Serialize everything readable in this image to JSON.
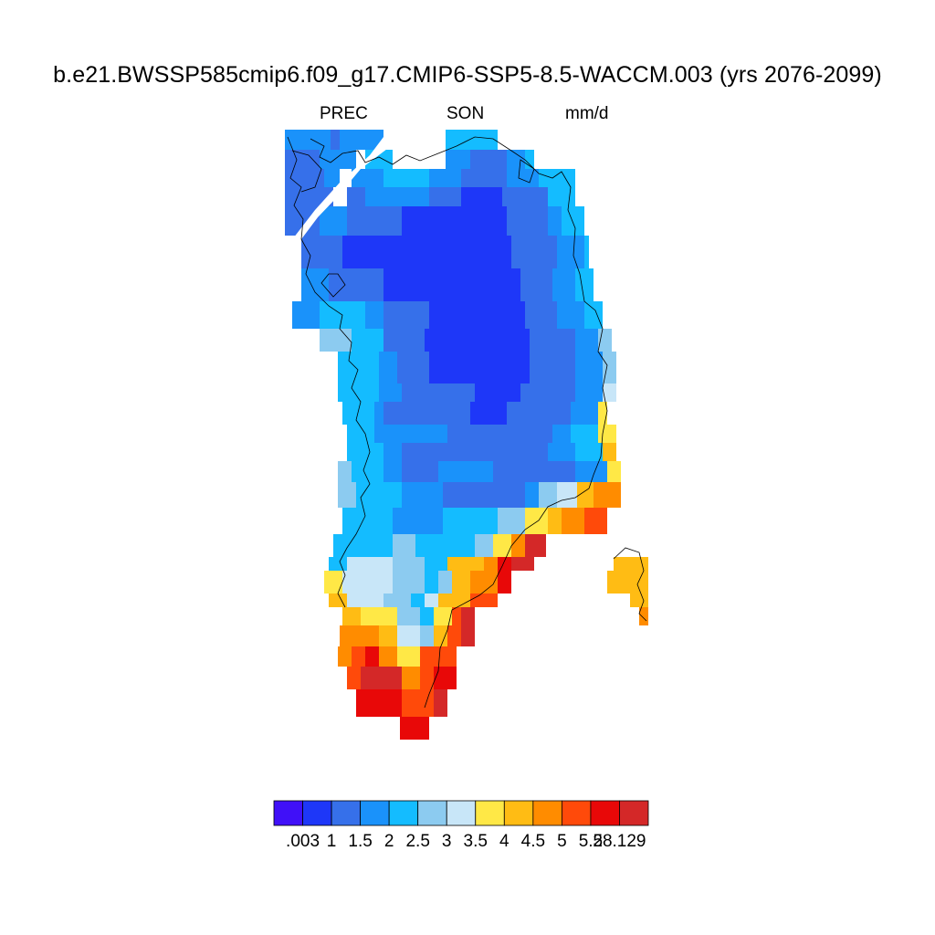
{
  "title": "b.e21.BWSSP585cmip6.f09_g17.CMIP6-SSP5-8.5-WACCM.003 (yrs 2076-2099)",
  "subtitle": {
    "variable": "PREC",
    "season": "SON",
    "units": "mm/d"
  },
  "colorbar": {
    "colors": [
      "#4010f8",
      "#1e37f8",
      "#3670ea",
      "#1a92fa",
      "#14bcff",
      "#8ccbf0",
      "#c8e6f8",
      "#ffe846",
      "#ffbc14",
      "#ff8c00",
      "#ff4a0a",
      "#e80808",
      "#d42828"
    ],
    "labels": [
      ".003",
      "1",
      "1.5",
      "2",
      "2.5",
      "3",
      "3.5",
      "4",
      "4.5",
      "5",
      "5.5",
      "28.129"
    ],
    "boundaries": [
      0.003,
      1,
      1.5,
      2,
      2.5,
      3,
      3.5,
      4,
      4.5,
      5,
      5.5,
      28.129
    ]
  }
}
